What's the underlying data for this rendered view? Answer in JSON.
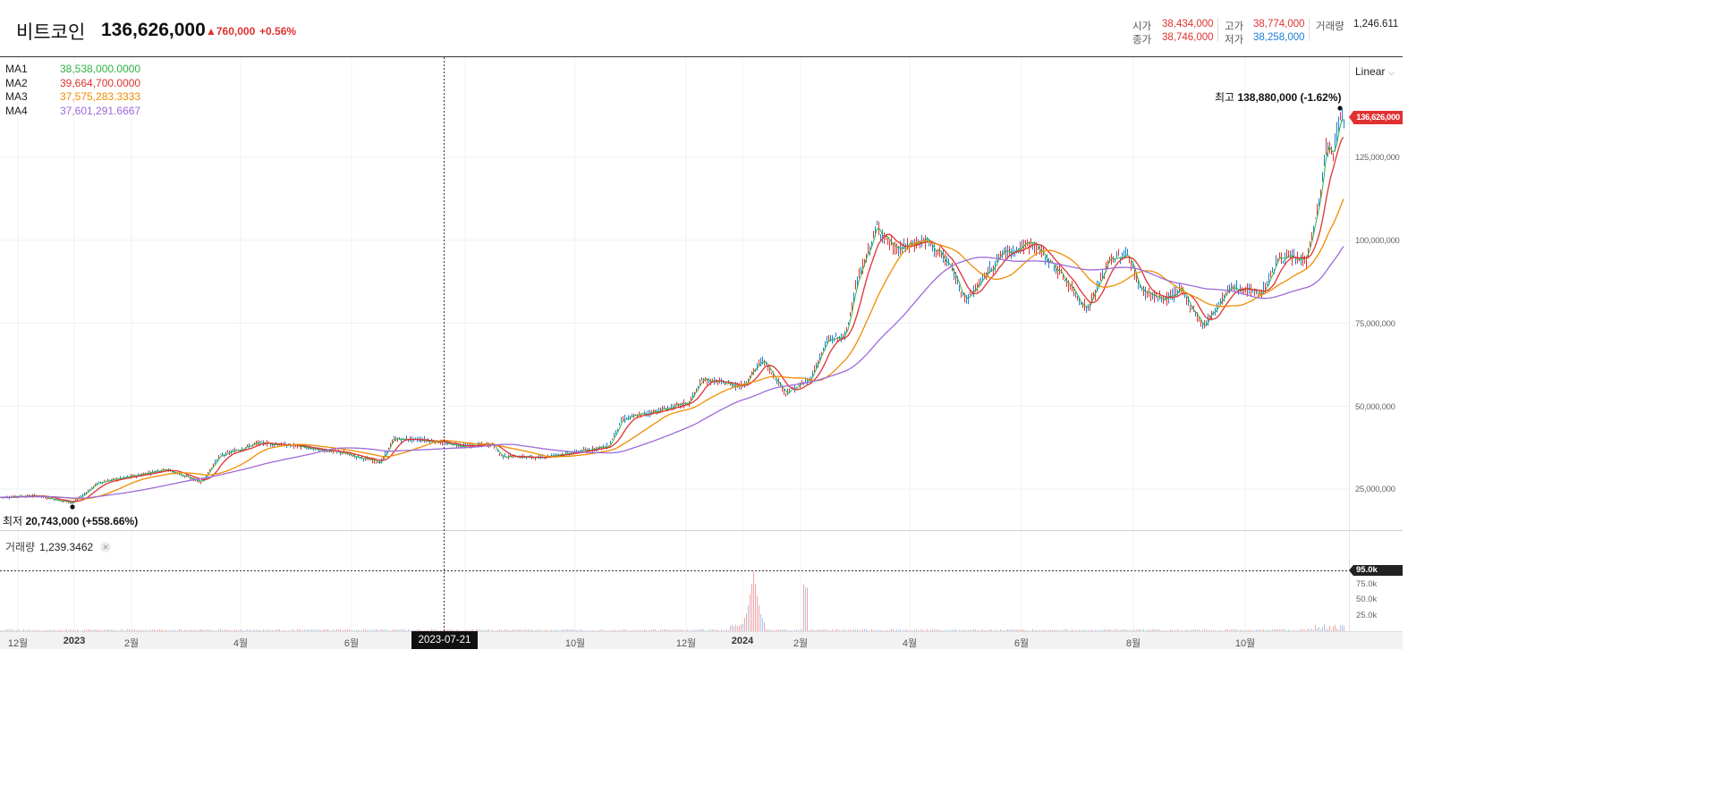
{
  "header": {
    "asset_name": "비트코인",
    "current_price": "136,626,000",
    "change": "▲760,000",
    "change_rate": "+0.56%",
    "stats": {
      "open_label": "시가",
      "open_value": "38,434,000",
      "close_label": "종가",
      "close_value": "38,746,000",
      "high_label": "고가",
      "high_value": "38,774,000",
      "low_label": "저가",
      "low_value": "38,258,000",
      "volume_label": "거래량",
      "volume_value": "1,246.611"
    }
  },
  "ma_legend": [
    {
      "name": "MA1",
      "value": "38,538,000.0000",
      "color": "#2fb344"
    },
    {
      "name": "MA2",
      "value": "39,664,700.0000",
      "color": "#e03131"
    },
    {
      "name": "MA3",
      "value": "37,575,283.3333",
      "color": "#f08c00"
    },
    {
      "name": "MA4",
      "value": "37,601,291.6667",
      "color": "#9c6ad8"
    }
  ],
  "scale_selector": "Linear",
  "price_axis": {
    "ticks": [
      "125,000,000",
      "100,000,000",
      "75,000,000",
      "50,000,000",
      "25,000,000"
    ],
    "tick_values": [
      125000000,
      100000000,
      75000000,
      50000000,
      25000000
    ],
    "current_price_tag": "136,626,000"
  },
  "annotations": {
    "high_label": "최고",
    "high_value": "138,880,000 (-1.62%)",
    "low_label": "최저",
    "low_value": "20,743,000 (+558.66%)"
  },
  "volume_panel": {
    "label": "거래량",
    "value": "1,239.3462",
    "close_icon": "close-icon",
    "axis_tag": "95.0k",
    "ticks": [
      "75.0k",
      "50.0k",
      "25.0k"
    ]
  },
  "time_axis": {
    "ticks": [
      {
        "label": "12월",
        "year": false
      },
      {
        "label": "2023",
        "year": true
      },
      {
        "label": "2월",
        "year": false
      },
      {
        "label": "4월",
        "year": false
      },
      {
        "label": "6월",
        "year": false
      },
      {
        "label": "10월",
        "year": false
      },
      {
        "label": "12월",
        "year": false
      },
      {
        "label": "2024",
        "year": true
      },
      {
        "label": "2월",
        "year": false
      },
      {
        "label": "4월",
        "year": false
      },
      {
        "label": "6월",
        "year": false
      },
      {
        "label": "8월",
        "year": false
      },
      {
        "label": "10월",
        "year": false
      }
    ],
    "crosshair_date": "2023-07-21"
  },
  "colors": {
    "up": "#e03131",
    "down": "#1c7ed6",
    "grid": "#f0f0f0",
    "crosshair": "#333333"
  }
}
